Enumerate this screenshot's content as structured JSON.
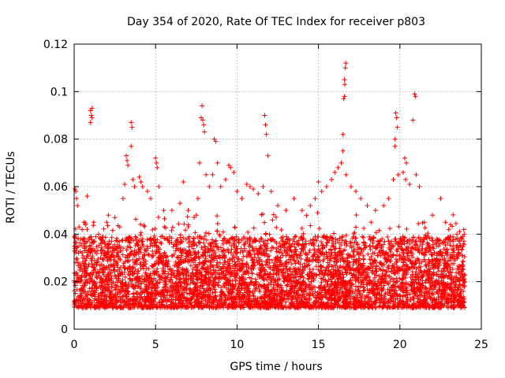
{
  "chart_data": {
    "type": "scatter",
    "title": "Day 354 of 2020, Rate Of TEC Index for receiver p803",
    "xlabel": "GPS time / hours",
    "ylabel": "ROTI / TECUs",
    "xlim": [
      0,
      25
    ],
    "ylim": [
      0,
      0.12
    ],
    "xticks": [
      0,
      5,
      10,
      15,
      20,
      25
    ],
    "xtick_labels": [
      "0",
      "5",
      "10",
      "15",
      "20",
      "25"
    ],
    "yticks": [
      0,
      0.02,
      0.04,
      0.06,
      0.08,
      0.1,
      0.12
    ],
    "ytick_labels": [
      "0",
      "0.02",
      "0.04",
      "0.06",
      "0.08",
      "0.1",
      "0.12"
    ],
    "grid": true,
    "marker": "+",
    "color": "#ff0000",
    "series": [
      {
        "name": "ROTI",
        "points": [
          [
            0.05,
            0.059
          ],
          [
            0.1,
            0.058
          ],
          [
            0.15,
            0.055
          ],
          [
            0.2,
            0.052
          ],
          [
            0.3,
            0.043
          ],
          [
            0.4,
            0.038
          ],
          [
            0.6,
            0.045
          ],
          [
            0.8,
            0.056
          ],
          [
            1.0,
            0.092
          ],
          [
            1.05,
            0.09
          ],
          [
            1.1,
            0.089
          ],
          [
            1.0,
            0.087
          ],
          [
            1.1,
            0.093
          ],
          [
            1.2,
            0.045
          ],
          [
            1.5,
            0.04
          ],
          [
            2.0,
            0.045
          ],
          [
            2.1,
            0.048
          ],
          [
            2.5,
            0.047
          ],
          [
            2.8,
            0.043
          ],
          [
            3.0,
            0.055
          ],
          [
            3.1,
            0.061
          ],
          [
            3.2,
            0.073
          ],
          [
            3.25,
            0.071
          ],
          [
            3.3,
            0.069
          ],
          [
            3.5,
            0.087
          ],
          [
            3.55,
            0.085
          ],
          [
            3.5,
            0.077
          ],
          [
            3.6,
            0.063
          ],
          [
            3.7,
            0.06
          ],
          [
            4.0,
            0.064
          ],
          [
            4.1,
            0.062
          ],
          [
            4.2,
            0.06
          ],
          [
            4.5,
            0.058
          ],
          [
            4.7,
            0.055
          ],
          [
            5.0,
            0.072
          ],
          [
            5.05,
            0.07
          ],
          [
            5.1,
            0.068
          ],
          [
            5.2,
            0.06
          ],
          [
            5.5,
            0.05
          ],
          [
            6.0,
            0.05
          ],
          [
            6.5,
            0.053
          ],
          [
            6.7,
            0.062
          ],
          [
            7.0,
            0.05
          ],
          [
            7.5,
            0.048
          ],
          [
            7.6,
            0.055
          ],
          [
            7.8,
            0.089
          ],
          [
            7.85,
            0.094
          ],
          [
            7.9,
            0.088
          ],
          [
            7.95,
            0.086
          ],
          [
            8.0,
            0.083
          ],
          [
            7.7,
            0.07
          ],
          [
            8.1,
            0.065
          ],
          [
            8.3,
            0.06
          ],
          [
            8.6,
            0.08
          ],
          [
            8.7,
            0.079
          ],
          [
            8.8,
            0.07
          ],
          [
            8.5,
            0.065
          ],
          [
            9.0,
            0.06
          ],
          [
            9.3,
            0.063
          ],
          [
            9.5,
            0.069
          ],
          [
            9.6,
            0.068
          ],
          [
            9.8,
            0.066
          ],
          [
            10.0,
            0.058
          ],
          [
            10.3,
            0.055
          ],
          [
            10.6,
            0.061
          ],
          [
            10.8,
            0.06
          ],
          [
            11.0,
            0.059
          ],
          [
            11.3,
            0.057
          ],
          [
            11.7,
            0.09
          ],
          [
            11.75,
            0.086
          ],
          [
            11.8,
            0.082
          ],
          [
            11.9,
            0.073
          ],
          [
            11.6,
            0.06
          ],
          [
            12.1,
            0.058
          ],
          [
            12.5,
            0.052
          ],
          [
            13.0,
            0.05
          ],
          [
            13.5,
            0.055
          ],
          [
            14.0,
            0.05
          ],
          [
            14.5,
            0.052
          ],
          [
            14.8,
            0.055
          ],
          [
            15.0,
            0.062
          ],
          [
            15.2,
            0.058
          ],
          [
            15.5,
            0.06
          ],
          [
            15.8,
            0.063
          ],
          [
            16.0,
            0.066
          ],
          [
            16.2,
            0.068
          ],
          [
            16.4,
            0.07
          ],
          [
            16.5,
            0.082
          ],
          [
            16.55,
            0.097
          ],
          [
            16.6,
            0.105
          ],
          [
            16.62,
            0.103
          ],
          [
            16.65,
            0.11
          ],
          [
            16.68,
            0.112
          ],
          [
            16.6,
            0.098
          ],
          [
            16.5,
            0.075
          ],
          [
            16.7,
            0.065
          ],
          [
            17.0,
            0.06
          ],
          [
            17.3,
            0.058
          ],
          [
            17.6,
            0.055
          ],
          [
            18.0,
            0.052
          ],
          [
            18.5,
            0.05
          ],
          [
            19.0,
            0.052
          ],
          [
            19.3,
            0.055
          ],
          [
            19.6,
            0.063
          ],
          [
            19.7,
            0.08
          ],
          [
            19.75,
            0.091
          ],
          [
            19.8,
            0.089
          ],
          [
            19.85,
            0.085
          ],
          [
            19.7,
            0.077
          ],
          [
            19.9,
            0.065
          ],
          [
            20.2,
            0.066
          ],
          [
            20.3,
            0.072
          ],
          [
            20.4,
            0.07
          ],
          [
            20.35,
            0.063
          ],
          [
            20.6,
            0.061
          ],
          [
            20.8,
            0.088
          ],
          [
            20.9,
            0.099
          ],
          [
            20.95,
            0.098
          ],
          [
            21.0,
            0.065
          ],
          [
            21.2,
            0.06
          ],
          [
            21.5,
            0.045
          ],
          [
            22.0,
            0.048
          ],
          [
            22.5,
            0.055
          ],
          [
            22.8,
            0.045
          ],
          [
            23.0,
            0.042
          ],
          [
            23.5,
            0.04
          ],
          [
            23.8,
            0.038
          ],
          [
            23.9,
            0.036
          ],
          [
            23.95,
            0.04
          ]
        ]
      }
    ],
    "dense_band": {
      "description_free": true,
      "x_range": [
        0,
        24
      ],
      "lower": 0.005,
      "upper": 0.035,
      "samples_per_hour": 220
    }
  }
}
